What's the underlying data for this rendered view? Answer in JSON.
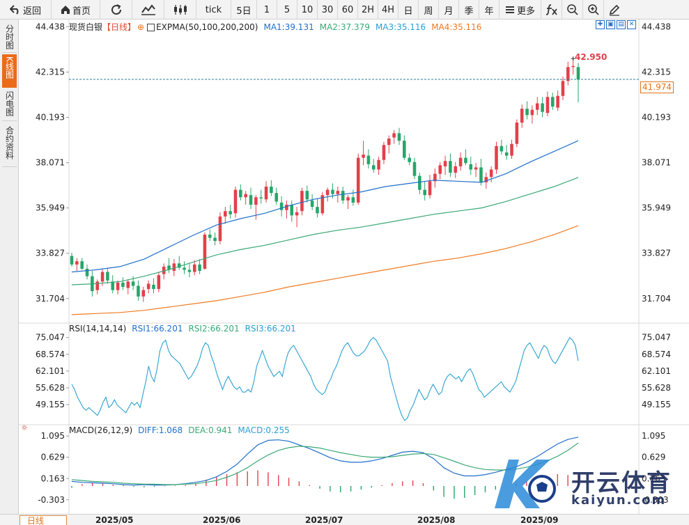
{
  "toolbar": {
    "back_label": "返回",
    "home_label": "首页",
    "tick_label": "tick",
    "periods": [
      "5日",
      "1",
      "5",
      "10",
      "30",
      "60",
      "2H",
      "4H",
      "日",
      "周",
      "月",
      "季",
      "年"
    ],
    "more_label": "更多"
  },
  "side_tabs": {
    "fenshi": "分时图",
    "kline": "K线图",
    "shandian": "闪电图",
    "heyue": "合约资料"
  },
  "main_legend": {
    "name": "现货白银",
    "period": "【日线】",
    "indicator": "EXPMA(50,100,200,200)",
    "ma1": "MA1:39.131",
    "ma2": "MA2:37.379",
    "ma3": "MA3:35.116",
    "ma4": "MA4:35.116"
  },
  "rsi_legend": {
    "name": "RSI(14,14,14)",
    "rsi1": "RSI1:66.201",
    "rsi2": "RSI2:66.201",
    "rsi3": "RSI3:66.201"
  },
  "macd_legend": {
    "name": "MACD(26,12,9)",
    "diff": "DIFF:1.068",
    "dea": "DEA:0.941",
    "macd": "MACD:0.255"
  },
  "price_labels": {
    "high": "42.950",
    "current": "41.974"
  },
  "bottom": {
    "period_tab": "日线",
    "dates": [
      "2025/05",
      "2025/06",
      "2025/07",
      "2025/08",
      "2025/09"
    ]
  },
  "watermark": {
    "brand": "开云体育",
    "site": "kaiyun.com"
  },
  "colors": {
    "up": "#e2404a",
    "down": "#26a66a",
    "ma1": "#1f6fc9",
    "ma2": "#3aa876",
    "ma3": "#f07a22",
    "diff": "#1f6fc9",
    "dea": "#3aa876",
    "accent": "#ea6b1a"
  },
  "chart_data": [
    {
      "type": "candlestick",
      "title": "现货白银 日线",
      "y_ticks": [
        44.438,
        42.315,
        40.193,
        38.071,
        35.949,
        33.827,
        31.704
      ],
      "ylim": [
        30.75,
        44.65
      ],
      "last_price": 41.974,
      "high_marker": 42.95,
      "candles_ohlc": [
        [
          33.7,
          33.85,
          33.2,
          33.3
        ],
        [
          33.3,
          33.6,
          33.0,
          33.45
        ],
        [
          33.45,
          33.6,
          33.05,
          33.1
        ],
        [
          33.1,
          33.3,
          32.6,
          32.75
        ],
        [
          32.75,
          33.0,
          31.8,
          32.05
        ],
        [
          32.1,
          32.6,
          31.9,
          32.5
        ],
        [
          32.5,
          33.1,
          32.3,
          32.95
        ],
        [
          32.95,
          33.15,
          32.4,
          32.55
        ],
        [
          32.5,
          32.8,
          31.95,
          32.1
        ],
        [
          32.1,
          32.55,
          31.9,
          32.45
        ],
        [
          32.45,
          32.7,
          32.1,
          32.25
        ],
        [
          32.2,
          32.6,
          31.9,
          32.5
        ],
        [
          32.5,
          32.75,
          32.1,
          32.3
        ],
        [
          32.3,
          32.55,
          31.6,
          31.8
        ],
        [
          31.8,
          32.25,
          31.55,
          32.1
        ],
        [
          32.15,
          32.55,
          31.95,
          32.4
        ],
        [
          32.35,
          32.65,
          31.95,
          32.15
        ],
        [
          32.15,
          32.95,
          32.0,
          32.8
        ],
        [
          32.85,
          33.35,
          32.6,
          33.2
        ],
        [
          33.25,
          33.6,
          32.9,
          33.05
        ],
        [
          33.0,
          33.55,
          32.75,
          33.35
        ],
        [
          33.35,
          33.7,
          33.05,
          33.15
        ],
        [
          33.15,
          33.45,
          32.85,
          33.05
        ],
        [
          33.05,
          33.35,
          32.7,
          32.95
        ],
        [
          32.95,
          33.5,
          32.8,
          33.3
        ],
        [
          33.3,
          33.55,
          32.85,
          33.0
        ],
        [
          33.1,
          34.8,
          33.05,
          34.7
        ],
        [
          34.7,
          34.95,
          34.4,
          34.55
        ],
        [
          34.55,
          34.8,
          34.2,
          34.4
        ],
        [
          34.4,
          35.75,
          34.25,
          35.55
        ],
        [
          35.55,
          36.0,
          35.2,
          35.8
        ],
        [
          35.8,
          36.1,
          35.45,
          35.65
        ],
        [
          35.7,
          36.95,
          35.5,
          36.8
        ],
        [
          36.8,
          37.05,
          36.3,
          36.45
        ],
        [
          36.45,
          36.75,
          36.1,
          36.6
        ],
        [
          36.55,
          36.9,
          35.9,
          36.1
        ],
        [
          36.1,
          36.55,
          35.4,
          36.45
        ],
        [
          36.45,
          36.8,
          36.15,
          36.4
        ],
        [
          36.35,
          37.2,
          36.2,
          36.95
        ],
        [
          36.95,
          37.25,
          36.5,
          36.65
        ],
        [
          36.65,
          36.9,
          36.1,
          36.25
        ],
        [
          36.2,
          36.5,
          35.55,
          35.85
        ],
        [
          35.85,
          36.3,
          35.45,
          36.1
        ],
        [
          36.1,
          36.3,
          35.3,
          35.6
        ],
        [
          35.6,
          36.0,
          35.05,
          35.75
        ],
        [
          35.8,
          36.9,
          35.6,
          36.75
        ],
        [
          36.75,
          37.0,
          36.2,
          36.35
        ],
        [
          36.3,
          36.6,
          35.85,
          36.0
        ],
        [
          36.0,
          36.4,
          35.5,
          35.7
        ],
        [
          35.7,
          36.7,
          35.6,
          36.55
        ],
        [
          36.55,
          36.9,
          36.25,
          36.8
        ],
        [
          36.8,
          37.1,
          36.4,
          36.6
        ],
        [
          36.6,
          36.95,
          36.2,
          36.75
        ],
        [
          36.75,
          36.95,
          36.15,
          36.3
        ],
        [
          36.3,
          36.55,
          35.9,
          36.45
        ],
        [
          36.45,
          36.8,
          36.05,
          36.2
        ],
        [
          36.2,
          38.5,
          36.1,
          38.3
        ],
        [
          38.3,
          39.1,
          37.95,
          38.45
        ],
        [
          38.4,
          38.7,
          37.8,
          38.0
        ],
        [
          37.95,
          38.25,
          37.6,
          37.75
        ],
        [
          37.75,
          38.35,
          37.5,
          38.2
        ],
        [
          38.2,
          39.05,
          38.0,
          38.9
        ],
        [
          38.9,
          39.35,
          38.5,
          39.2
        ],
        [
          39.25,
          39.6,
          38.95,
          39.45
        ],
        [
          39.45,
          39.7,
          38.9,
          39.1
        ],
        [
          39.1,
          39.35,
          38.2,
          38.3
        ],
        [
          38.3,
          38.5,
          37.95,
          38.1
        ],
        [
          38.1,
          38.3,
          37.3,
          37.45
        ],
        [
          37.45,
          37.6,
          36.6,
          36.8
        ],
        [
          36.8,
          37.2,
          36.3,
          36.55
        ],
        [
          36.55,
          37.5,
          36.4,
          37.2
        ],
        [
          37.2,
          37.8,
          36.9,
          37.55
        ],
        [
          37.55,
          38.1,
          37.3,
          37.95
        ],
        [
          37.9,
          38.4,
          37.5,
          38.15
        ],
        [
          38.15,
          38.5,
          37.4,
          37.6
        ],
        [
          37.6,
          38.1,
          37.35,
          37.9
        ],
        [
          37.9,
          38.55,
          37.7,
          38.3
        ],
        [
          38.3,
          38.7,
          37.95,
          38.05
        ],
        [
          38.0,
          38.35,
          37.5,
          37.75
        ],
        [
          37.75,
          38.05,
          37.4,
          37.85
        ],
        [
          37.85,
          38.25,
          37.0,
          37.15
        ],
        [
          37.15,
          37.6,
          36.85,
          37.4
        ],
        [
          37.4,
          37.9,
          37.15,
          37.75
        ],
        [
          37.75,
          39.05,
          37.55,
          38.85
        ],
        [
          38.85,
          39.15,
          38.45,
          38.6
        ],
        [
          38.55,
          38.9,
          38.2,
          38.4
        ],
        [
          38.4,
          39.15,
          38.25,
          38.95
        ],
        [
          38.95,
          40.1,
          38.8,
          39.95
        ],
        [
          39.95,
          40.8,
          39.7,
          40.6
        ],
        [
          40.6,
          40.95,
          40.1,
          40.3
        ],
        [
          40.3,
          40.75,
          39.9,
          40.55
        ],
        [
          40.55,
          41.15,
          40.3,
          40.85
        ],
        [
          40.85,
          41.15,
          40.2,
          40.45
        ],
        [
          40.4,
          41.4,
          40.25,
          41.15
        ],
        [
          41.15,
          41.35,
          40.55,
          40.7
        ],
        [
          40.65,
          41.45,
          40.5,
          41.2
        ],
        [
          41.2,
          42.1,
          41.0,
          41.9
        ],
        [
          41.9,
          42.8,
          41.7,
          42.55
        ],
        [
          42.55,
          42.95,
          42.2,
          42.6
        ],
        [
          42.55,
          42.75,
          40.9,
          41.97
        ]
      ],
      "ma1_series": [
        32.95,
        33.05,
        33.2,
        33.55,
        34.1,
        34.65,
        35.15,
        35.45,
        35.7,
        36.05,
        36.35,
        36.55,
        36.7,
        36.95,
        37.1,
        37.25,
        37.2,
        37.15,
        37.55,
        38.1,
        38.6,
        39.1
      ],
      "ma2_series": [
        32.35,
        32.4,
        32.5,
        32.75,
        33.05,
        33.4,
        33.75,
        34.0,
        34.2,
        34.45,
        34.7,
        34.9,
        35.05,
        35.25,
        35.45,
        35.65,
        35.8,
        35.95,
        36.25,
        36.6,
        36.95,
        37.38
      ],
      "ma3_series": [
        30.95,
        31.0,
        31.05,
        31.15,
        31.3,
        31.45,
        31.6,
        31.8,
        32.0,
        32.25,
        32.45,
        32.65,
        32.85,
        33.05,
        33.25,
        33.45,
        33.6,
        33.8,
        34.05,
        34.35,
        34.7,
        35.12
      ]
    },
    {
      "type": "line",
      "title": "RSI(14,14,14)",
      "y_ticks": [
        75.047,
        68.574,
        62.101,
        55.628,
        49.155
      ],
      "ylim": [
        43,
        79
      ],
      "rsi_series": [
        57,
        55,
        52,
        50,
        48,
        47,
        48,
        47,
        46,
        45,
        47,
        50,
        52,
        48,
        49,
        51,
        49,
        48,
        47,
        46,
        48,
        50,
        49,
        50,
        48,
        53,
        58,
        64,
        60,
        58,
        63,
        70,
        73,
        74,
        70,
        68,
        67,
        66,
        65,
        63,
        61,
        59,
        60,
        62,
        64,
        67,
        71,
        73,
        72,
        68,
        65,
        61,
        58,
        55,
        58,
        60,
        58,
        56,
        55,
        56,
        54,
        54,
        55,
        54,
        58,
        64,
        67,
        70,
        67,
        64,
        62,
        60,
        61,
        62,
        60,
        65,
        69,
        71,
        72,
        70,
        68,
        66,
        64,
        62,
        60,
        57,
        55,
        54,
        53,
        54,
        57,
        59,
        62,
        64,
        67,
        70,
        72,
        73,
        71,
        69,
        68,
        68,
        69,
        70,
        72,
        74,
        75,
        74,
        72,
        70,
        68,
        66,
        60,
        56,
        52,
        48,
        45,
        43,
        44,
        47,
        49,
        52,
        55,
        53,
        51,
        52,
        55,
        57,
        55,
        53,
        54,
        58,
        60,
        61,
        60,
        59,
        60,
        58,
        60,
        62,
        63,
        61,
        58,
        55,
        54,
        52,
        53,
        54,
        55,
        56,
        57,
        58,
        56,
        55,
        54,
        56,
        58,
        62,
        66,
        70,
        72,
        73,
        71,
        69,
        67,
        70,
        72,
        71,
        68,
        66,
        65,
        67,
        69,
        71,
        73,
        75,
        74,
        72,
        66
      ]
    },
    {
      "type": "bar",
      "title": "MACD(26,12,9)",
      "y_ticks": [
        1.095,
        0.629,
        0.163,
        -0.303
      ],
      "ylim": [
        -0.55,
        1.25
      ],
      "diff_series": [
        0.1,
        0.08,
        0.07,
        0.06,
        0.05,
        0.03,
        0.02,
        0.03,
        0.02,
        0.02,
        0.03,
        0.05,
        0.08,
        0.12,
        0.2,
        0.32,
        0.48,
        0.7,
        0.9,
        1.0,
        1.01,
        0.98,
        0.9,
        0.82,
        0.72,
        0.62,
        0.55,
        0.52,
        0.52,
        0.55,
        0.6,
        0.67,
        0.74,
        0.76,
        0.73,
        0.6,
        0.4,
        0.28,
        0.22,
        0.22,
        0.25,
        0.3,
        0.36,
        0.42,
        0.52,
        0.64,
        0.78,
        0.92,
        1.02,
        1.07
      ],
      "dea_series": [
        0.14,
        0.12,
        0.1,
        0.09,
        0.08,
        0.06,
        0.05,
        0.04,
        0.04,
        0.03,
        0.03,
        0.04,
        0.05,
        0.08,
        0.12,
        0.19,
        0.28,
        0.4,
        0.55,
        0.68,
        0.78,
        0.84,
        0.87,
        0.86,
        0.83,
        0.78,
        0.73,
        0.69,
        0.65,
        0.63,
        0.63,
        0.64,
        0.67,
        0.7,
        0.71,
        0.69,
        0.62,
        0.54,
        0.46,
        0.4,
        0.36,
        0.35,
        0.35,
        0.37,
        0.41,
        0.47,
        0.55,
        0.65,
        0.78,
        0.94
      ],
      "macd_hist": [
        -0.04,
        0.04,
        0.06,
        0.05,
        0.03,
        0.02,
        -0.02,
        -0.03,
        -0.02,
        -0.01,
        0.01,
        0.02,
        0.06,
        0.14,
        0.2,
        0.26,
        0.3,
        0.32,
        0.34,
        0.3,
        0.24,
        0.18,
        0.1,
        0.02,
        -0.06,
        -0.12,
        -0.14,
        -0.12,
        -0.08,
        -0.04,
        0.02,
        0.06,
        0.1,
        0.12,
        0.06,
        -0.1,
        -0.24,
        -0.28,
        -0.26,
        -0.2,
        -0.14,
        -0.08,
        0.01,
        0.05,
        0.11,
        0.16,
        0.22,
        0.26,
        0.24,
        0.255
      ]
    }
  ]
}
